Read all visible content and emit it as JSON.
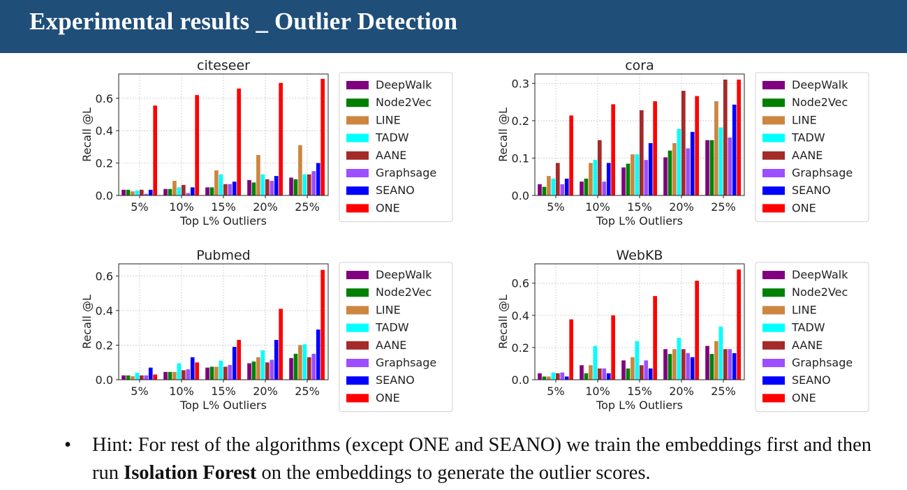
{
  "slide": {
    "title": "Experimental results _ Outlier Detection",
    "hint": {
      "bullet": "•",
      "before": "Hint: For rest of the algorithms (except ONE and SEANO) we train the embeddings first and then run ",
      "bold": "Isolation Forest",
      "after": " on the embeddings to generate the outlier scores."
    }
  },
  "colors": {
    "DeepWalk": "#800080",
    "Node2Vec": "#008000",
    "LINE": "#cd853f",
    "TADW": "#00ffff",
    "AANE": "#a52a2a",
    "Graphsage": "#9b4fff",
    "SEANO": "#0000ff",
    "ONE": "#ff0000"
  },
  "chart_data": [
    {
      "type": "bar",
      "title": "citeseer",
      "xlabel": "Top L% Outliers",
      "ylabel": "Recall @L",
      "categories": [
        "5%",
        "10%",
        "15%",
        "20%",
        "25%"
      ],
      "ylim": [
        0,
        0.75
      ],
      "yticks": [
        0.0,
        0.2,
        0.4,
        0.6
      ],
      "ytick_labels": [
        "0.0",
        "0.2",
        "0.4",
        "0.6"
      ],
      "grid": true,
      "legend": "right",
      "series": [
        {
          "name": "DeepWalk",
          "values": [
            0.035,
            0.04,
            0.05,
            0.095,
            0.11
          ]
        },
        {
          "name": "Node2Vec",
          "values": [
            0.035,
            0.04,
            0.05,
            0.08,
            0.1
          ]
        },
        {
          "name": "LINE",
          "values": [
            0.025,
            0.09,
            0.155,
            0.25,
            0.31
          ]
        },
        {
          "name": "TADW",
          "values": [
            0.03,
            0.05,
            0.13,
            0.13,
            0.13
          ]
        },
        {
          "name": "AANE",
          "values": [
            0.035,
            0.065,
            0.07,
            0.1,
            0.13
          ]
        },
        {
          "name": "Graphsage",
          "values": [
            0.01,
            0.015,
            0.07,
            0.09,
            0.15
          ]
        },
        {
          "name": "SEANO",
          "values": [
            0.035,
            0.05,
            0.085,
            0.12,
            0.2
          ]
        },
        {
          "name": "ONE",
          "values": [
            0.555,
            0.62,
            0.66,
            0.695,
            0.72
          ]
        }
      ]
    },
    {
      "type": "bar",
      "title": "cora",
      "xlabel": "Top L% Outliers",
      "ylabel": "Recall @L",
      "categories": [
        "5%",
        "10%",
        "15%",
        "20%",
        "25%"
      ],
      "ylim": [
        0,
        0.325
      ],
      "yticks": [
        0.0,
        0.1,
        0.2,
        0.3
      ],
      "ytick_labels": [
        "0.0",
        "0.1",
        "0.2",
        "0.3"
      ],
      "grid": true,
      "legend": "right",
      "series": [
        {
          "name": "DeepWalk",
          "values": [
            0.03,
            0.037,
            0.075,
            0.102,
            0.148
          ]
        },
        {
          "name": "Node2Vec",
          "values": [
            0.023,
            0.045,
            0.085,
            0.12,
            0.148
          ]
        },
        {
          "name": "LINE",
          "values": [
            0.052,
            0.087,
            0.11,
            0.14,
            0.252
          ]
        },
        {
          "name": "TADW",
          "values": [
            0.045,
            0.095,
            0.11,
            0.178,
            0.182
          ]
        },
        {
          "name": "AANE",
          "values": [
            0.087,
            0.148,
            0.228,
            0.28,
            0.31
          ]
        },
        {
          "name": "Graphsage",
          "values": [
            0.03,
            0.037,
            0.095,
            0.126,
            0.155
          ]
        },
        {
          "name": "SEANO",
          "values": [
            0.045,
            0.087,
            0.14,
            0.17,
            0.243
          ]
        },
        {
          "name": "ONE",
          "values": [
            0.214,
            0.244,
            0.252,
            0.266,
            0.31
          ]
        }
      ]
    },
    {
      "type": "bar",
      "title": "Pubmed",
      "xlabel": "Top L% Outliers",
      "ylabel": "Recall @L",
      "categories": [
        "5%",
        "10%",
        "15%",
        "20%",
        "25%"
      ],
      "ylim": [
        0,
        0.67
      ],
      "yticks": [
        0.0,
        0.2,
        0.4,
        0.6
      ],
      "ytick_labels": [
        "0.0",
        "0.2",
        "0.4",
        "0.6"
      ],
      "grid": true,
      "legend": "right",
      "series": [
        {
          "name": "DeepWalk",
          "values": [
            0.025,
            0.045,
            0.07,
            0.095,
            0.125
          ]
        },
        {
          "name": "Node2Vec",
          "values": [
            0.025,
            0.045,
            0.075,
            0.105,
            0.15
          ]
        },
        {
          "name": "LINE",
          "values": [
            0.02,
            0.045,
            0.075,
            0.13,
            0.2
          ]
        },
        {
          "name": "TADW",
          "values": [
            0.04,
            0.095,
            0.11,
            0.17,
            0.205
          ]
        },
        {
          "name": "AANE",
          "values": [
            0.025,
            0.055,
            0.075,
            0.1,
            0.13
          ]
        },
        {
          "name": "Graphsage",
          "values": [
            0.025,
            0.06,
            0.085,
            0.115,
            0.15
          ]
        },
        {
          "name": "SEANO",
          "values": [
            0.07,
            0.13,
            0.19,
            0.23,
            0.29
          ]
        },
        {
          "name": "ONE",
          "values": [
            0.03,
            0.1,
            0.23,
            0.41,
            0.635
          ]
        }
      ]
    },
    {
      "type": "bar",
      "title": "WebKB",
      "xlabel": "Top L% Outliers",
      "ylabel": "Recall @L",
      "categories": [
        "5%",
        "10%",
        "15%",
        "20%",
        "25%"
      ],
      "ylim": [
        0,
        0.72
      ],
      "yticks": [
        0.0,
        0.2,
        0.4,
        0.6
      ],
      "ytick_labels": [
        "0.0",
        "0.2",
        "0.4",
        "0.6"
      ],
      "grid": true,
      "legend": "right",
      "series": [
        {
          "name": "DeepWalk",
          "values": [
            0.04,
            0.09,
            0.12,
            0.19,
            0.21
          ]
        },
        {
          "name": "Node2Vec",
          "values": [
            0.02,
            0.04,
            0.07,
            0.16,
            0.16
          ]
        },
        {
          "name": "LINE",
          "values": [
            0.02,
            0.09,
            0.14,
            0.19,
            0.24
          ]
        },
        {
          "name": "TADW",
          "values": [
            0.045,
            0.21,
            0.24,
            0.26,
            0.33
          ]
        },
        {
          "name": "AANE",
          "values": [
            0.04,
            0.07,
            0.09,
            0.19,
            0.19
          ]
        },
        {
          "name": "Graphsage",
          "values": [
            0.045,
            0.07,
            0.12,
            0.165,
            0.19
          ]
        },
        {
          "name": "SEANO",
          "values": [
            0.02,
            0.04,
            0.07,
            0.14,
            0.165
          ]
        },
        {
          "name": "ONE",
          "values": [
            0.375,
            0.4,
            0.52,
            0.615,
            0.685
          ]
        }
      ]
    }
  ]
}
